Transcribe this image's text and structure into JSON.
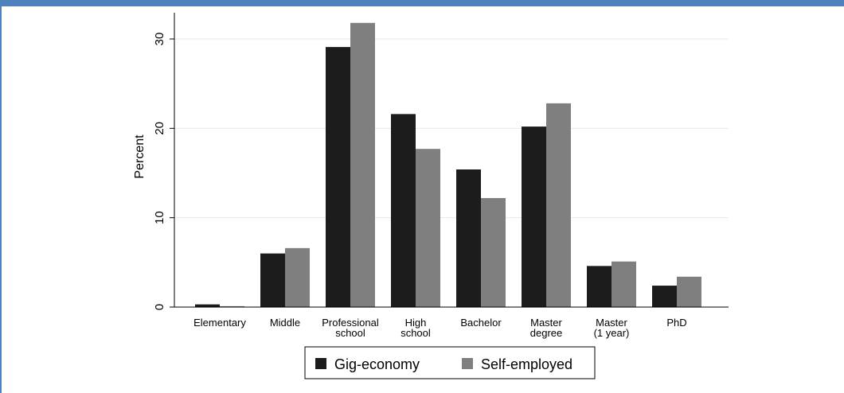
{
  "chart_data": {
    "type": "bar",
    "ylabel": "Percent",
    "xlabel": "",
    "ylim": [
      0,
      33
    ],
    "yticks": [
      0,
      10,
      20,
      30
    ],
    "grid": true,
    "legend_position": "bottom",
    "categories": [
      [
        "Elementary"
      ],
      [
        "Middle"
      ],
      [
        "Professional",
        "school"
      ],
      [
        "High",
        "school"
      ],
      [
        "Bachelor"
      ],
      [
        "Master",
        "degree"
      ],
      [
        "Master",
        "(1 year)"
      ],
      [
        "PhD"
      ]
    ],
    "series": [
      {
        "name": "Gig-economy",
        "color": "#1c1c1c",
        "values": [
          0.3,
          6.0,
          29.1,
          21.6,
          15.4,
          20.2,
          4.6,
          2.4
        ]
      },
      {
        "name": "Self-employed",
        "color": "#7f7f7f",
        "values": [
          0.1,
          6.6,
          31.8,
          17.7,
          12.2,
          22.8,
          5.1,
          3.4
        ]
      }
    ]
  },
  "colors": {
    "frame": "#4f81bd",
    "grid": "#eaeaea"
  }
}
